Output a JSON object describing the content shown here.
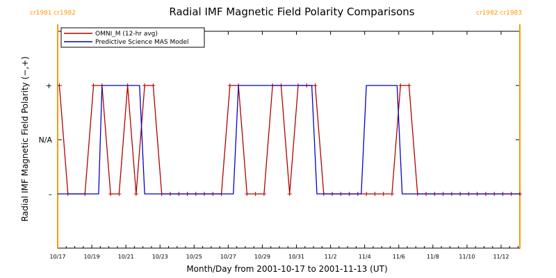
{
  "chart_data": {
    "type": "line",
    "title": "Radial IMF Magnetic Field Polarity Comparisons",
    "xlabel": "Month/Day from 2001-10-17 to 2001-11-13 (UT)",
    "ylabel": "Radial IMF Magnetic Field Polarity (−,+)",
    "x_unit": "days since 2001-10-17 00:00 UT",
    "xlim": [
      0,
      27.1
    ],
    "ylim": [
      -2,
      2
    ],
    "x_ticks": [
      {
        "x": 0,
        "label": "10/17"
      },
      {
        "x": 2,
        "label": "10/19"
      },
      {
        "x": 4,
        "label": "10/21"
      },
      {
        "x": 6,
        "label": "10/23"
      },
      {
        "x": 8,
        "label": "10/25"
      },
      {
        "x": 10,
        "label": "10/27"
      },
      {
        "x": 12,
        "label": "10/29"
      },
      {
        "x": 14,
        "label": "10/31"
      },
      {
        "x": 16,
        "label": "11/2"
      },
      {
        "x": 18,
        "label": "11/4"
      },
      {
        "x": 20,
        "label": "11/6"
      },
      {
        "x": 22,
        "label": "11/8"
      },
      {
        "x": 24,
        "label": "11/10"
      },
      {
        "x": 26,
        "label": "11/12"
      }
    ],
    "y_ticks": [
      {
        "y": 1,
        "label": "+"
      },
      {
        "y": 0,
        "label": "N/A"
      },
      {
        "y": -1,
        "label": "–"
      }
    ],
    "legend_position": "top-left",
    "series": [
      {
        "name": "OMNI_M (12-hr avg)",
        "color": "#b00000",
        "marker": "plus",
        "points": [
          [
            0.1,
            1
          ],
          [
            0.6,
            -1
          ],
          [
            1.6,
            -1
          ],
          [
            2.1,
            1
          ],
          [
            2.6,
            1
          ],
          [
            3.1,
            -1
          ],
          [
            3.6,
            -1
          ],
          [
            4.1,
            1
          ],
          [
            4.6,
            -1
          ],
          [
            5.1,
            1
          ],
          [
            5.6,
            1
          ],
          [
            6.1,
            -1
          ],
          [
            6.6,
            -1
          ],
          [
            7.1,
            -1
          ],
          [
            7.6,
            -1
          ],
          [
            8.1,
            -1
          ],
          [
            8.6,
            -1
          ],
          [
            9.1,
            -1
          ],
          [
            9.6,
            -1
          ],
          [
            10.1,
            1
          ],
          [
            10.6,
            1
          ],
          [
            11.1,
            -1
          ],
          [
            11.6,
            -1
          ],
          [
            12.1,
            -1
          ],
          [
            12.6,
            1
          ],
          [
            13.1,
            1
          ],
          [
            13.6,
            -1
          ],
          [
            14.1,
            1
          ],
          [
            14.6,
            1
          ],
          [
            15.1,
            1
          ],
          [
            15.6,
            -1
          ],
          [
            16.1,
            -1
          ],
          [
            16.6,
            -1
          ],
          [
            17.1,
            -1
          ],
          [
            17.6,
            -1
          ],
          [
            18.1,
            -1
          ],
          [
            18.6,
            -1
          ],
          [
            19.1,
            -1
          ],
          [
            19.6,
            -1
          ],
          [
            20.1,
            1
          ],
          [
            20.6,
            1
          ],
          [
            21.1,
            -1
          ],
          [
            21.6,
            -1
          ],
          [
            22.1,
            -1
          ],
          [
            22.6,
            -1
          ],
          [
            23.1,
            -1
          ],
          [
            23.6,
            -1
          ],
          [
            24.1,
            -1
          ],
          [
            24.6,
            -1
          ],
          [
            25.1,
            -1
          ],
          [
            25.6,
            -1
          ],
          [
            26.1,
            -1
          ],
          [
            26.6,
            -1
          ],
          [
            27.1,
            -1
          ]
        ]
      },
      {
        "name": "Predictive Science MAS Model",
        "color": "#0000cc",
        "marker": "none",
        "points": [
          [
            0,
            -1
          ],
          [
            2.4,
            -1
          ],
          [
            2.6,
            1
          ],
          [
            4.8,
            1
          ],
          [
            5.1,
            -1
          ],
          [
            10.3,
            -1
          ],
          [
            10.6,
            1
          ],
          [
            14.9,
            1
          ],
          [
            15.2,
            -1
          ],
          [
            17.8,
            -1
          ],
          [
            18.1,
            1
          ],
          [
            19.9,
            1
          ],
          [
            20.2,
            -1
          ],
          [
            27.1,
            -1
          ]
        ]
      }
    ],
    "carrington_markers": [
      {
        "x": 0.0,
        "label": "cr1981 cr1982",
        "color": "#ff9900",
        "label_anchor": "start"
      },
      {
        "x": 27.1,
        "label": "cr1982 cr1983",
        "color": "#ff9900",
        "label_anchor": "end"
      }
    ]
  }
}
